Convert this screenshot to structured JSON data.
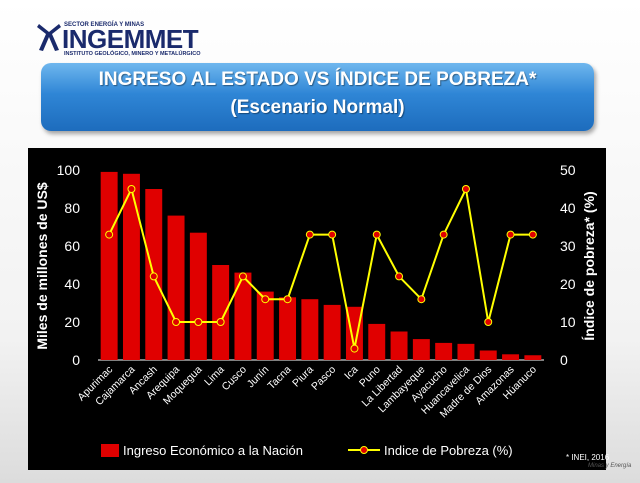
{
  "logo": {
    "sector": "SECTOR ENERGÍA Y MINAS",
    "name": "INGEMMET",
    "institute": "INSTITUTO GEOLÓGICO, MINERO Y METALÚRGICO"
  },
  "title": {
    "line1": "INGRESO AL ESTADO VS ÍNDICE DE POBREZA*",
    "line2": "(Escenario Normal)"
  },
  "source_note": "* INEI, 2016",
  "footer_logo_text": "Minas y Energía",
  "colors": {
    "bars": "#e00000",
    "line": "#ffff00",
    "marker": "#e00000",
    "panel": "#000000",
    "title_box": "#2f86d6"
  },
  "chart_data": {
    "type": "bar",
    "categories": [
      "Apurimac",
      "Cajamarca",
      "Ancash",
      "Arequipa",
      "Moquegua",
      "Lima",
      "Cusco",
      "Junín",
      "Tacna",
      "Piura",
      "Pasco",
      "Ica",
      "Puno",
      "La Libertad",
      "Lambayeque",
      "Ayacucho",
      "Huancavelica",
      "Madre de Dios",
      "Amazonas",
      "Húanuco"
    ],
    "series": [
      {
        "name": "Ingreso Económico a la Nación",
        "type": "bar",
        "axis": "left",
        "values": [
          99,
          98,
          90,
          76,
          67,
          50,
          46,
          36,
          33,
          32,
          29,
          28,
          19,
          15,
          11,
          9,
          8.5,
          5,
          3,
          2.5
        ]
      },
      {
        "name": "Indice de Pobreza (%)",
        "type": "line",
        "axis": "right",
        "values": [
          33,
          45,
          22,
          10,
          10,
          10,
          22,
          16,
          16,
          33,
          33,
          3,
          33,
          22,
          16,
          33,
          45,
          10,
          33,
          33
        ]
      }
    ],
    "ylabel": "Miles de millones de US$",
    "y2label": "Índice de pobreza* (%)",
    "ylim": [
      0,
      100
    ],
    "y2lim": [
      0,
      50
    ],
    "yticks": [
      "0",
      "20",
      "40",
      "60",
      "80",
      "100"
    ],
    "y2ticks": [
      "0",
      "10",
      "20",
      "30",
      "40",
      "50"
    ],
    "legend_position": "bottom",
    "grid": false
  }
}
